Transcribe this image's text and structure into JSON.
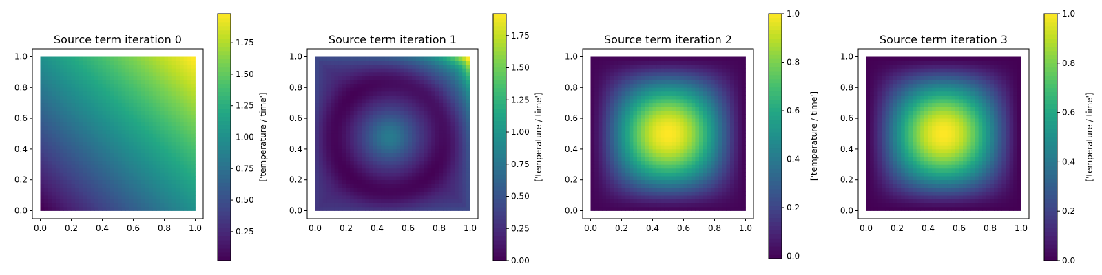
{
  "chart_data": [
    {
      "type": "heatmap",
      "title": "Source term iteration 0",
      "field": "linear",
      "xticks": [
        "0.0",
        "0.2",
        "0.4",
        "0.6",
        "0.8",
        "1.0"
      ],
      "yticks": [
        "0.0",
        "0.2",
        "0.4",
        "0.6",
        "0.8",
        "1.0"
      ],
      "xlim": [
        0,
        1
      ],
      "ylim": [
        0,
        1
      ],
      "value_range": [
        0.02,
        1.98
      ],
      "colorbar": {
        "label": "['temperature / time']",
        "range": [
          0.02,
          1.98
        ],
        "ticks": [
          "0.25",
          "0.50",
          "0.75",
          "1.00",
          "1.25",
          "1.50",
          "1.75"
        ],
        "tick_values": [
          0.25,
          0.5,
          0.75,
          1.0,
          1.25,
          1.5,
          1.75
        ]
      }
    },
    {
      "type": "heatmap",
      "title": "Source term iteration 1",
      "field": "corrected",
      "xticks": [
        "0.0",
        "0.2",
        "0.4",
        "0.6",
        "0.8",
        "1.0"
      ],
      "yticks": [
        "0.0",
        "0.2",
        "0.4",
        "0.6",
        "0.8",
        "1.0"
      ],
      "xlim": [
        0,
        1
      ],
      "ylim": [
        0,
        1
      ],
      "value_range": [
        0.0,
        1.92
      ],
      "colorbar": {
        "label": "['temperature / time']",
        "range": [
          0.0,
          1.92
        ],
        "ticks": [
          "0.00",
          "0.25",
          "0.50",
          "0.75",
          "1.00",
          "1.25",
          "1.50",
          "1.75"
        ],
        "tick_values": [
          0.0,
          0.25,
          0.5,
          0.75,
          1.0,
          1.25,
          1.5,
          1.75
        ]
      }
    },
    {
      "type": "heatmap",
      "title": "Source term iteration 2",
      "field": "bump",
      "xticks": [
        "0.0",
        "0.2",
        "0.4",
        "0.6",
        "0.8",
        "1.0"
      ],
      "yticks": [
        "0.0",
        "0.2",
        "0.4",
        "0.6",
        "0.8",
        "1.0"
      ],
      "xlim": [
        0,
        1
      ],
      "ylim": [
        0,
        1
      ],
      "value_range": [
        0.0,
        1.0
      ],
      "colorbar": {
        "label": "['temperature / time']",
        "range": [
          -0.01,
          1.0
        ],
        "ticks": [
          "0.0",
          "0.2",
          "0.4",
          "0.6",
          "0.8",
          "1.0"
        ],
        "tick_values": [
          0.0,
          0.2,
          0.4,
          0.6,
          0.8,
          1.0
        ]
      }
    },
    {
      "type": "heatmap",
      "title": "Source term iteration 3",
      "field": "bump",
      "xticks": [
        "0.0",
        "0.2",
        "0.4",
        "0.6",
        "0.8",
        "1.0"
      ],
      "yticks": [
        "0.0",
        "0.2",
        "0.4",
        "0.6",
        "0.8",
        "1.0"
      ],
      "xlim": [
        0,
        1
      ],
      "ylim": [
        0,
        1
      ],
      "value_range": [
        0.0,
        1.0
      ],
      "colorbar": {
        "label": "['temperature / time']",
        "range": [
          0.0,
          1.0
        ],
        "ticks": [
          "0.0",
          "0.2",
          "0.4",
          "0.6",
          "0.8",
          "1.0"
        ],
        "tick_values": [
          0.0,
          0.2,
          0.4,
          0.6,
          0.8,
          1.0
        ]
      }
    }
  ]
}
